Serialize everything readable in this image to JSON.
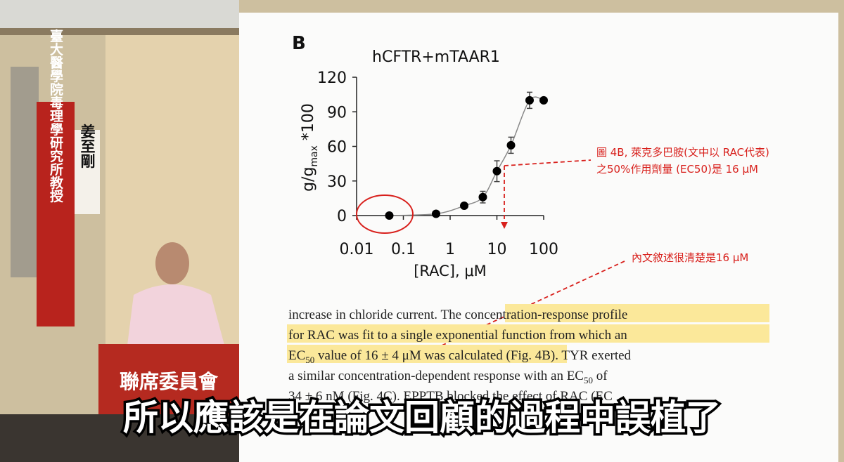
{
  "banner": {
    "affiliation": "臺大醫學院毒理學研究所教授",
    "name": "姜至剛",
    "podium": "聯席委員會"
  },
  "slide": {
    "panel_label": "B",
    "chart_data": {
      "type": "scatter",
      "title": "hCFTR+mTAAR1",
      "ylabel": {
        "main": "g/g",
        "sub": "max",
        "suffix": " *100"
      },
      "xlabel": "[RAC], μM",
      "x": [
        0.05,
        0.5,
        2,
        5,
        10,
        20,
        50,
        100
      ],
      "values": [
        0,
        1.5,
        8.5,
        16,
        38.5,
        61,
        100,
        100
      ],
      "errors": [
        1,
        1,
        1.5,
        5,
        9,
        7,
        7,
        2
      ],
      "color": "#000000",
      "xscale": "log",
      "xlim": [
        0.01,
        100
      ],
      "xticks": [
        0.01,
        0.1,
        1,
        10,
        100
      ],
      "ylim": [
        0,
        120
      ],
      "yticks": [
        0,
        30,
        60,
        90,
        120
      ]
    },
    "annotations": [
      "圖 4B, 萊克多巴胺(文中以 RAC代表)",
      "之50%作用劑量 (EC50)是 16 μM",
      "內文敘述很清楚是16 μM"
    ],
    "paper_text": [
      [
        "increase in chloride current. ",
        "The concentration-response profile"
      ],
      [
        "for RAC was fit to a single exponential function from which an"
      ],
      [
        "EC",
        "50",
        " value of 16 ± 4 μM was calculated (Fig. 4B)",
        ". TYR exerted"
      ],
      [
        "a similar concentration-dependent response with an EC",
        "50",
        " of"
      ],
      [
        "34 ± 6 nM (Fig. 4C). EPPTB blocked the effect of RAC (EC"
      ]
    ]
  },
  "subtitle": "所以應該是在論文回顧的過程中誤植了"
}
